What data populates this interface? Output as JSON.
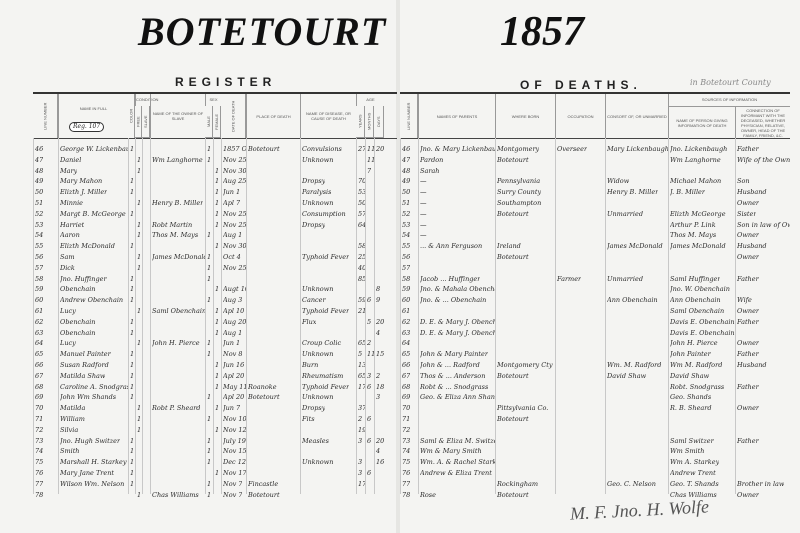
{
  "county": "BOTETOURT",
  "year": "1857",
  "register_title": "REGISTER",
  "register_title_2": "OF DEATHS.",
  "county_note": "in Botetourt County",
  "page_stamp": "Reg. 107",
  "signature": "M. F. Jno. H. Wolfe",
  "left_headers": [
    "Line Number",
    "Name in Full",
    "Color",
    "Free",
    "Slave",
    "Name of the Owner of Slave",
    "Male",
    "Female",
    "Date of Death",
    "Place of Death",
    "Name of Disease, or Cause of Death",
    "Years",
    "Months",
    "Days"
  ],
  "header_groups": {
    "condition": "Condition",
    "sex": "Sex",
    "age": "Age",
    "sources": "Sources of Information"
  },
  "right_headers": [
    "Line Number",
    "Names of Parents",
    "Where Born",
    "Occupation",
    "Consort of, or Unmarried",
    "Name of Person giving information of Death",
    "Connection of Informant with the deceased, whether Physician, Relative, Owner, Head of the Family, Friend, &c."
  ],
  "left_rows": [
    [
      "46",
      "George W. Lickenbaugh",
      "1",
      "",
      "",
      "",
      "1",
      "",
      "1857 Oct 12",
      "Botetourt",
      "Convulsions",
      "27",
      "11",
      "20"
    ],
    [
      "47",
      "Daniel",
      "",
      "1",
      "",
      "Wm Langhorne",
      "1",
      "",
      "Nov 25",
      "",
      "Unknown",
      "",
      "11",
      ""
    ],
    [
      "48",
      "Mary",
      "",
      "1",
      "",
      "",
      "",
      "1",
      "Nov 30",
      "",
      "",
      "",
      "7",
      ""
    ],
    [
      "49",
      "Mary Mahon",
      "1",
      "",
      "",
      "",
      "",
      "1",
      "Aug 25",
      "",
      "Dropsy",
      "70",
      "",
      ""
    ],
    [
      "50",
      "Elizth J. Miller",
      "1",
      "",
      "",
      "",
      "",
      "1",
      "Jun 1",
      "",
      "Paralysis",
      "53",
      "",
      ""
    ],
    [
      "51",
      "Minnie",
      "",
      "1",
      "",
      "Henry B. Miller",
      "",
      "1",
      "Apl 7",
      "",
      "Unknown",
      "50",
      "",
      ""
    ],
    [
      "52",
      "Margt B. McGeorge",
      "1",
      "",
      "",
      "",
      "",
      "1",
      "Nov 25",
      "",
      "Consumption",
      "57",
      "",
      ""
    ],
    [
      "53",
      "Harriet",
      "",
      "1",
      "",
      "Robt Martin",
      "",
      "1",
      "Nov 25",
      "",
      "Dropsy",
      "64",
      "",
      ""
    ],
    [
      "54",
      "Aaron",
      "",
      "1",
      "",
      "Thos M. Mays",
      "1",
      "",
      "Aug 1",
      "",
      "",
      "",
      "",
      ""
    ],
    [
      "55",
      "Elizth McDonald",
      "1",
      "",
      "",
      "",
      "",
      "1",
      "Nov 30",
      "",
      "",
      "58",
      "",
      ""
    ],
    [
      "56",
      "Sam",
      "",
      "1",
      "",
      "James McDonald",
      "1",
      "",
      "Oct 4",
      "",
      "Typhoid Fever",
      "25",
      "",
      ""
    ],
    [
      "57",
      "Dick",
      "",
      "1",
      "",
      "",
      "1",
      "",
      "Nov 25",
      "",
      "",
      "40",
      "",
      ""
    ],
    [
      "58",
      "Jno. Huffinger",
      "1",
      "",
      "",
      "",
      "1",
      "",
      "",
      "",
      "",
      "85",
      "",
      ""
    ],
    [
      "59",
      "Obenchain",
      "1",
      "",
      "",
      "",
      "",
      "1",
      "Augt 10",
      "",
      "Unknown",
      "",
      "",
      "8"
    ],
    [
      "60",
      "Andrew Obenchain",
      "1",
      "",
      "",
      "",
      "1",
      "",
      "Aug 3",
      "",
      "Cancer",
      "59",
      "6",
      "9"
    ],
    [
      "61",
      "Lucy",
      "",
      "1",
      "",
      "Saml Obenchain",
      "",
      "1",
      "Apl 10",
      "",
      "Typhoid Fever",
      "21",
      "",
      ""
    ],
    [
      "62",
      "Obenchain",
      "1",
      "",
      "",
      "",
      "",
      "1",
      "Aug 20",
      "",
      "Flux",
      "",
      "5",
      "20"
    ],
    [
      "63",
      "Obenchain",
      "1",
      "",
      "",
      "",
      "",
      "1",
      "Aug 1",
      "",
      "",
      "",
      "",
      "4"
    ],
    [
      "64",
      "Lucy",
      "",
      "1",
      "",
      "John H. Pierce",
      "1",
      "",
      "Jun 1",
      "",
      "Croup Colic",
      "65",
      "2",
      ""
    ],
    [
      "65",
      "Manuel Painter",
      "1",
      "",
      "",
      "",
      "1",
      "",
      "Nov 8",
      "",
      "Unknown",
      "5",
      "11",
      "15"
    ],
    [
      "66",
      "Susan Radford",
      "1",
      "",
      "",
      "",
      "",
      "1",
      "Jun 16",
      "",
      "Burn",
      "13",
      "",
      ""
    ],
    [
      "67",
      "Matilda Shaw",
      "1",
      "",
      "",
      "",
      "",
      "1",
      "Apl 20",
      "",
      "Rheumatism",
      "65",
      "3",
      "2"
    ],
    [
      "68",
      "Caroline A. Snodgrass",
      "1",
      "",
      "",
      "",
      "",
      "1",
      "May 11",
      "Roanoke",
      "Typhoid Fever",
      "17",
      "6",
      "18"
    ],
    [
      "69",
      "John Wm Shands",
      "1",
      "",
      "",
      "",
      "1",
      "",
      "Apl 20",
      "Botetourt",
      "Unknown",
      "",
      "",
      "3"
    ],
    [
      "70",
      "Matilda",
      "",
      "1",
      "",
      "Robt P. Sheard",
      "",
      "1",
      "Jun 7",
      "",
      "Dropsy",
      "37",
      "",
      ""
    ],
    [
      "71",
      "William",
      "",
      "1",
      "",
      "",
      "1",
      "",
      "Nov 10",
      "",
      "Fits",
      "2",
      "6",
      ""
    ],
    [
      "72",
      "Silvia",
      "",
      "1",
      "",
      "",
      "",
      "1",
      "Nov 12",
      "",
      "",
      "19",
      "",
      ""
    ],
    [
      "73",
      "Jno. Hugh Switzer",
      "1",
      "",
      "",
      "",
      "1",
      "",
      "July 19",
      "",
      "Measles",
      "3",
      "6",
      "20"
    ],
    [
      "74",
      "Smith",
      "1",
      "",
      "",
      "",
      "1",
      "",
      "Nov 15",
      "",
      "",
      "",
      "",
      "4"
    ],
    [
      "75",
      "Marshall H. Starkey",
      "1",
      "",
      "",
      "",
      "1",
      "",
      "Dec 12",
      "",
      "Unknown",
      "3",
      "",
      "16"
    ],
    [
      "76",
      "Mary Jane Trent",
      "1",
      "",
      "",
      "",
      "",
      "1",
      "Nov 17",
      "",
      "",
      "3",
      "6",
      ""
    ],
    [
      "77",
      "Wilson Wm. Nelson",
      "1",
      "",
      "",
      "",
      "1",
      "",
      "Nov 7",
      "Fincastle",
      "",
      "17",
      "",
      ""
    ],
    [
      "78",
      "",
      "",
      "1",
      "",
      "Chas Williams",
      "1",
      "",
      "Nov 7",
      "Botetourt",
      "",
      "",
      "",
      ""
    ]
  ],
  "right_rows": [
    [
      "46",
      "Jno. & Mary Lickenbaugh",
      "Montgomery",
      "Overseer",
      "Mary Lickenbaugh",
      "Jno. Lickenbaugh",
      "Father"
    ],
    [
      "47",
      "Pardon",
      "Botetourt",
      "",
      "",
      "Wm Langhorne",
      "Wife of the Owner"
    ],
    [
      "48",
      "Sarah",
      "",
      "",
      "",
      "",
      ""
    ],
    [
      "49",
      "—",
      "Pennsylvania",
      "",
      "Widow",
      "Michael Mahon",
      "Son"
    ],
    [
      "50",
      "—",
      "Surry County",
      "",
      "Henry B. Miller",
      "J. B. Miller",
      "Husband"
    ],
    [
      "51",
      "—",
      "Southampton",
      "",
      "",
      "",
      "Owner"
    ],
    [
      "52",
      "—",
      "Botetourt",
      "",
      "Unmarried",
      "Elizth McGeorge",
      "Sister"
    ],
    [
      "53",
      "—",
      "",
      "",
      "",
      "Arthur P. Link",
      "Son in law of Owner"
    ],
    [
      "54",
      "—",
      "",
      "",
      "",
      "Thos M. Mays",
      "Owner"
    ],
    [
      "55",
      "... & Ann Ferguson",
      "Ireland",
      "",
      "James McDonald",
      "James McDonald",
      "Husband"
    ],
    [
      "56",
      "",
      "Botetourt",
      "",
      "",
      "",
      "Owner"
    ],
    [
      "57",
      "",
      "",
      "",
      "",
      "",
      ""
    ],
    [
      "58",
      "Jacob ... Huffinger",
      "",
      "Farmer",
      "Unmarried",
      "Saml Huffinger",
      "Father"
    ],
    [
      "59",
      "Jno. & Mahala Obenchain",
      "",
      "",
      "",
      "Jno. W. Obenchain",
      ""
    ],
    [
      "60",
      "Jno. & ... Obenchain",
      "",
      "",
      "Ann Obenchain",
      "Ann Obenchain",
      "Wife"
    ],
    [
      "61",
      "",
      "",
      "",
      "",
      "Saml Obenchain",
      "Owner"
    ],
    [
      "62",
      "D. E. & Mary J. Obenchain",
      "",
      "",
      "",
      "Davis E. Obenchain",
      "Father"
    ],
    [
      "63",
      "D. E. & Mary J. Obenchain",
      "",
      "",
      "",
      "Davis E. Obenchain",
      ""
    ],
    [
      "64",
      "",
      "",
      "",
      "",
      "John H. Pierce",
      "Owner"
    ],
    [
      "65",
      "John & Mary Painter",
      "",
      "",
      "",
      "John Painter",
      "Father"
    ],
    [
      "66",
      "John & ... Radford",
      "Montgomery Cty",
      "",
      "Wm. M. Radford",
      "Wm M. Radford",
      "Husband"
    ],
    [
      "67",
      "Thos & ... Anderson",
      "Botetourt",
      "",
      "David Shaw",
      "David Shaw",
      ""
    ],
    [
      "68",
      "Robt & ... Snodgrass",
      "",
      "",
      "",
      "Robt. Snodgrass",
      "Father"
    ],
    [
      "69",
      "Geo. & Eliza Ann Shands",
      "",
      "",
      "",
      "Geo. Shands",
      ""
    ],
    [
      "70",
      "",
      "Pittsylvania Co.",
      "",
      "",
      "R. B. Sheard",
      "Owner"
    ],
    [
      "71",
      "",
      "Botetourt",
      "",
      "",
      "",
      ""
    ],
    [
      "72",
      "",
      "",
      "",
      "",
      "",
      ""
    ],
    [
      "73",
      "Saml & Eliza M. Switzer",
      "",
      "",
      "",
      "Saml Switzer",
      "Father"
    ],
    [
      "74",
      "Wm & Mary Smith",
      "",
      "",
      "",
      "Wm Smith",
      ""
    ],
    [
      "75",
      "Wm. A. & Rachel Starkey",
      "",
      "",
      "",
      "Wm A. Starkey",
      ""
    ],
    [
      "76",
      "Andrew & Eliza Trent",
      "",
      "",
      "",
      "Andrew Trent",
      ""
    ],
    [
      "77",
      "",
      "Rockingham",
      "",
      "Geo. C. Nelson",
      "Geo. T. Shands",
      "Brother in law"
    ],
    [
      "78",
      "Rose",
      "Botetourt",
      "",
      "",
      "Chas Williams",
      "Owner"
    ]
  ]
}
